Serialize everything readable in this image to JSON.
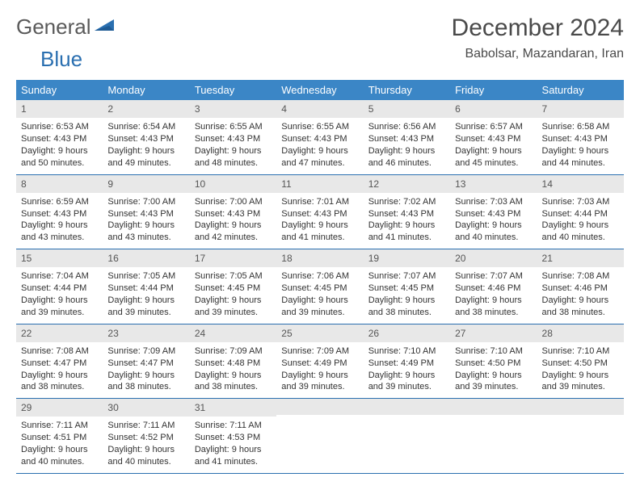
{
  "logo": {
    "general": "General",
    "blue": "Blue"
  },
  "title": "December 2024",
  "location": "Babolsar, Mazandaran, Iran",
  "colors": {
    "header_bg": "#3b86c6",
    "header_text": "#ffffff",
    "rule": "#2a6fb0",
    "daynum_bg": "#e8e8e8",
    "logo_blue": "#2a6fb0",
    "logo_gray": "#5a5a5a",
    "body_text": "#333333"
  },
  "weekdays": [
    "Sunday",
    "Monday",
    "Tuesday",
    "Wednesday",
    "Thursday",
    "Friday",
    "Saturday"
  ],
  "weeks": [
    [
      {
        "n": "1",
        "sr": "Sunrise: 6:53 AM",
        "ss": "Sunset: 4:43 PM",
        "dl": "Daylight: 9 hours and 50 minutes."
      },
      {
        "n": "2",
        "sr": "Sunrise: 6:54 AM",
        "ss": "Sunset: 4:43 PM",
        "dl": "Daylight: 9 hours and 49 minutes."
      },
      {
        "n": "3",
        "sr": "Sunrise: 6:55 AM",
        "ss": "Sunset: 4:43 PM",
        "dl": "Daylight: 9 hours and 48 minutes."
      },
      {
        "n": "4",
        "sr": "Sunrise: 6:55 AM",
        "ss": "Sunset: 4:43 PM",
        "dl": "Daylight: 9 hours and 47 minutes."
      },
      {
        "n": "5",
        "sr": "Sunrise: 6:56 AM",
        "ss": "Sunset: 4:43 PM",
        "dl": "Daylight: 9 hours and 46 minutes."
      },
      {
        "n": "6",
        "sr": "Sunrise: 6:57 AM",
        "ss": "Sunset: 4:43 PM",
        "dl": "Daylight: 9 hours and 45 minutes."
      },
      {
        "n": "7",
        "sr": "Sunrise: 6:58 AM",
        "ss": "Sunset: 4:43 PM",
        "dl": "Daylight: 9 hours and 44 minutes."
      }
    ],
    [
      {
        "n": "8",
        "sr": "Sunrise: 6:59 AM",
        "ss": "Sunset: 4:43 PM",
        "dl": "Daylight: 9 hours and 43 minutes."
      },
      {
        "n": "9",
        "sr": "Sunrise: 7:00 AM",
        "ss": "Sunset: 4:43 PM",
        "dl": "Daylight: 9 hours and 43 minutes."
      },
      {
        "n": "10",
        "sr": "Sunrise: 7:00 AM",
        "ss": "Sunset: 4:43 PM",
        "dl": "Daylight: 9 hours and 42 minutes."
      },
      {
        "n": "11",
        "sr": "Sunrise: 7:01 AM",
        "ss": "Sunset: 4:43 PM",
        "dl": "Daylight: 9 hours and 41 minutes."
      },
      {
        "n": "12",
        "sr": "Sunrise: 7:02 AM",
        "ss": "Sunset: 4:43 PM",
        "dl": "Daylight: 9 hours and 41 minutes."
      },
      {
        "n": "13",
        "sr": "Sunrise: 7:03 AM",
        "ss": "Sunset: 4:43 PM",
        "dl": "Daylight: 9 hours and 40 minutes."
      },
      {
        "n": "14",
        "sr": "Sunrise: 7:03 AM",
        "ss": "Sunset: 4:44 PM",
        "dl": "Daylight: 9 hours and 40 minutes."
      }
    ],
    [
      {
        "n": "15",
        "sr": "Sunrise: 7:04 AM",
        "ss": "Sunset: 4:44 PM",
        "dl": "Daylight: 9 hours and 39 minutes."
      },
      {
        "n": "16",
        "sr": "Sunrise: 7:05 AM",
        "ss": "Sunset: 4:44 PM",
        "dl": "Daylight: 9 hours and 39 minutes."
      },
      {
        "n": "17",
        "sr": "Sunrise: 7:05 AM",
        "ss": "Sunset: 4:45 PM",
        "dl": "Daylight: 9 hours and 39 minutes."
      },
      {
        "n": "18",
        "sr": "Sunrise: 7:06 AM",
        "ss": "Sunset: 4:45 PM",
        "dl": "Daylight: 9 hours and 39 minutes."
      },
      {
        "n": "19",
        "sr": "Sunrise: 7:07 AM",
        "ss": "Sunset: 4:45 PM",
        "dl": "Daylight: 9 hours and 38 minutes."
      },
      {
        "n": "20",
        "sr": "Sunrise: 7:07 AM",
        "ss": "Sunset: 4:46 PM",
        "dl": "Daylight: 9 hours and 38 minutes."
      },
      {
        "n": "21",
        "sr": "Sunrise: 7:08 AM",
        "ss": "Sunset: 4:46 PM",
        "dl": "Daylight: 9 hours and 38 minutes."
      }
    ],
    [
      {
        "n": "22",
        "sr": "Sunrise: 7:08 AM",
        "ss": "Sunset: 4:47 PM",
        "dl": "Daylight: 9 hours and 38 minutes."
      },
      {
        "n": "23",
        "sr": "Sunrise: 7:09 AM",
        "ss": "Sunset: 4:47 PM",
        "dl": "Daylight: 9 hours and 38 minutes."
      },
      {
        "n": "24",
        "sr": "Sunrise: 7:09 AM",
        "ss": "Sunset: 4:48 PM",
        "dl": "Daylight: 9 hours and 38 minutes."
      },
      {
        "n": "25",
        "sr": "Sunrise: 7:09 AM",
        "ss": "Sunset: 4:49 PM",
        "dl": "Daylight: 9 hours and 39 minutes."
      },
      {
        "n": "26",
        "sr": "Sunrise: 7:10 AM",
        "ss": "Sunset: 4:49 PM",
        "dl": "Daylight: 9 hours and 39 minutes."
      },
      {
        "n": "27",
        "sr": "Sunrise: 7:10 AM",
        "ss": "Sunset: 4:50 PM",
        "dl": "Daylight: 9 hours and 39 minutes."
      },
      {
        "n": "28",
        "sr": "Sunrise: 7:10 AM",
        "ss": "Sunset: 4:50 PM",
        "dl": "Daylight: 9 hours and 39 minutes."
      }
    ],
    [
      {
        "n": "29",
        "sr": "Sunrise: 7:11 AM",
        "ss": "Sunset: 4:51 PM",
        "dl": "Daylight: 9 hours and 40 minutes."
      },
      {
        "n": "30",
        "sr": "Sunrise: 7:11 AM",
        "ss": "Sunset: 4:52 PM",
        "dl": "Daylight: 9 hours and 40 minutes."
      },
      {
        "n": "31",
        "sr": "Sunrise: 7:11 AM",
        "ss": "Sunset: 4:53 PM",
        "dl": "Daylight: 9 hours and 41 minutes."
      },
      {
        "empty": true
      },
      {
        "empty": true
      },
      {
        "empty": true
      },
      {
        "empty": true
      }
    ]
  ]
}
